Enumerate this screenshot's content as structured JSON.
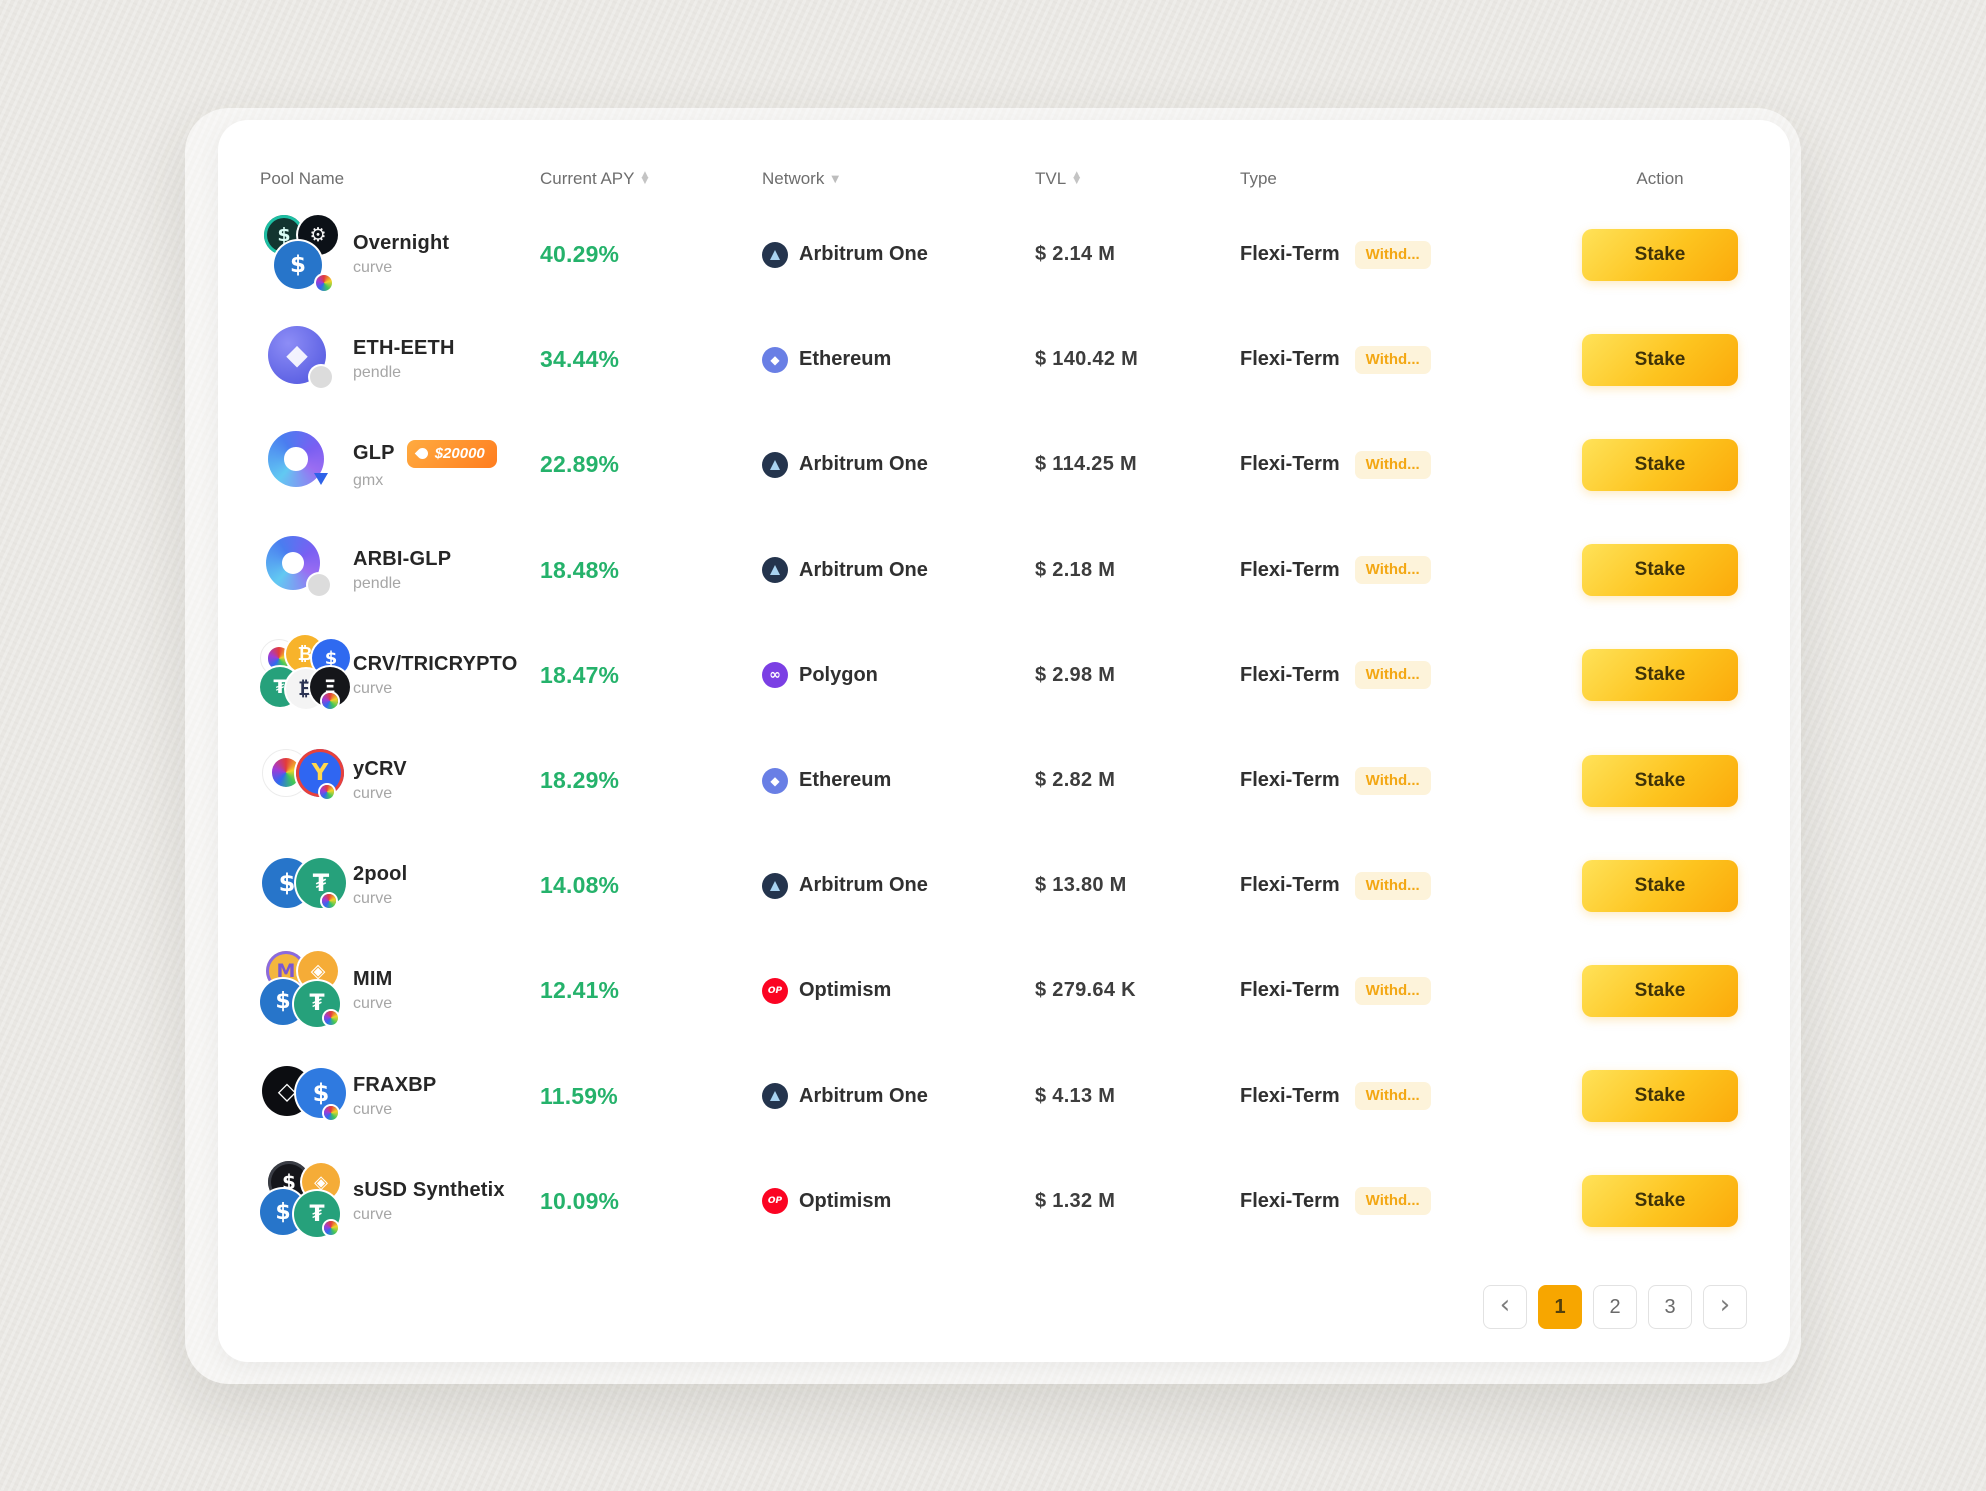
{
  "icons": {
    "sort_up": "▲",
    "sort_down": "▼",
    "caret_down": "▼",
    "chevron_left": "‹",
    "chevron_right": "›",
    "optimism_label": "OP",
    "ethereum_glyph": "◆",
    "polygon_glyph": "∞"
  },
  "colors": {
    "apy_green": "#25b26b",
    "stake_gradient": [
      "#ffe259",
      "#fba90a"
    ],
    "hot_badge_gradient": [
      "#ffab40",
      "#ff7d1f"
    ],
    "type_badge_bg": "#fdf3da",
    "type_badge_text": "#f3a713",
    "active_page": "#f7a600",
    "page_background": "#e9e7e3"
  },
  "table": {
    "columns": [
      {
        "label": "Pool Name",
        "icon": null
      },
      {
        "label": "Current APY",
        "icon": "sort"
      },
      {
        "label": "Network",
        "icon": "caret"
      },
      {
        "label": "TVL",
        "icon": "sort"
      },
      {
        "label": "Type",
        "icon": null
      },
      {
        "label": "Action",
        "icon": null
      }
    ],
    "rows": [
      {
        "name": "Overnight",
        "protocol": "curve",
        "hot_badge": null,
        "apy": "40.29%",
        "network": {
          "label": "Arbitrum One",
          "type": "arbitrum"
        },
        "tvl": "$ 2.14 M",
        "type": "Flexi-Term",
        "type_badge": "Withd...",
        "action": "Stake",
        "coins": [
          {
            "g": "$",
            "bg": "#123530",
            "fg": "#d9fef6",
            "ring": "#1dbfa3",
            "x": 4,
            "y": 0,
            "s": 40
          },
          {
            "g": "⚙",
            "bg": "#0c1117",
            "fg": "#f5f5f5",
            "x": 38,
            "y": 0,
            "s": 40
          },
          {
            "g": "$",
            "bg": "#2775ca",
            "fg": "#ffffff",
            "x": 14,
            "y": 26,
            "s": 48
          }
        ],
        "chip": {
          "type": "curve",
          "x": 56,
          "y": 60,
          "s": 16
        }
      },
      {
        "name": "ETH-EETH",
        "protocol": "pendle",
        "hot_badge": null,
        "apy": "34.44%",
        "network": {
          "label": "Ethereum",
          "type": "ethereum"
        },
        "tvl": "$ 140.42 M",
        "type": "Flexi-Term",
        "type_badge": "Withd...",
        "action": "Stake",
        "coins": [
          {
            "t": "eth",
            "g": "◆",
            "x": 8,
            "y": 6,
            "s": 58
          }
        ],
        "chip": {
          "type": "gray",
          "x": 50,
          "y": 46,
          "s": 22
        }
      },
      {
        "name": "GLP",
        "protocol": "gmx",
        "hot_badge": {
          "text": "$20000"
        },
        "apy": "22.89%",
        "network": {
          "label": "Arbitrum One",
          "type": "arbitrum"
        },
        "tvl": "$ 114.25 M",
        "type": "Flexi-Term",
        "type_badge": "Withd...",
        "action": "Stake",
        "coins": [
          {
            "t": "gmx",
            "x": 8,
            "y": 6,
            "s": 56
          }
        ],
        "chip": {
          "type": "tri",
          "x": 54,
          "y": 48,
          "s": 14
        }
      },
      {
        "name": "ARBI-GLP",
        "protocol": "pendle",
        "hot_badge": null,
        "apy": "18.48%",
        "network": {
          "label": "Arbitrum One",
          "type": "arbitrum"
        },
        "tvl": "$ 2.18 M",
        "type": "Flexi-Term",
        "type_badge": "Withd...",
        "action": "Stake",
        "coins": [
          {
            "t": "gmx",
            "x": 6,
            "y": 6,
            "s": 54
          }
        ],
        "chip": {
          "type": "gray",
          "x": 48,
          "y": 44,
          "s": 22
        }
      },
      {
        "name": "CRV/TRICRYPTO",
        "protocol": "curve",
        "hot_badge": null,
        "apy": "18.47%",
        "network": {
          "label": "Polygon",
          "type": "polygon"
        },
        "tvl": "$ 2.98 M",
        "type": "Flexi-Term",
        "type_badge": "Withd...",
        "action": "Stake",
        "coins": [
          {
            "t": "curve",
            "x": 0,
            "y": 4,
            "s": 38
          },
          {
            "g": "₿",
            "bg": "#f7b32b",
            "fg": "#ffffff",
            "x": 26,
            "y": 0,
            "s": 38
          },
          {
            "g": "$",
            "bg": "#2f6af0",
            "fg": "#ffffff",
            "x": 52,
            "y": 4,
            "s": 38
          },
          {
            "g": "₮",
            "bg": "#26a17b",
            "fg": "#ffffff",
            "x": 0,
            "y": 32,
            "s": 40
          },
          {
            "g": "₿",
            "bg": "#f4f4f4",
            "fg": "#2a3353",
            "x": 26,
            "y": 34,
            "s": 40
          },
          {
            "g": "Ξ",
            "bg": "#15161a",
            "fg": "#ffffff",
            "x": 50,
            "y": 32,
            "s": 40
          }
        ],
        "chip": {
          "type": "curve",
          "x": 62,
          "y": 58,
          "s": 16
        }
      },
      {
        "name": "yCRV",
        "protocol": "curve",
        "hot_badge": null,
        "apy": "18.29%",
        "network": {
          "label": "Ethereum",
          "type": "ethereum"
        },
        "tvl": "$ 2.82 M",
        "type": "Flexi-Term",
        "type_badge": "Withd...",
        "action": "Stake",
        "coins": [
          {
            "t": "curve",
            "x": 2,
            "y": 8,
            "s": 48
          },
          {
            "g": "Y",
            "bg": "#2f66f2",
            "fg": "#ffd84d",
            "ring": "#e8413c",
            "x": 36,
            "y": 8,
            "s": 48
          }
        ],
        "chip": {
          "type": "curve",
          "x": 60,
          "y": 44,
          "s": 14
        }
      },
      {
        "name": "2pool",
        "protocol": "curve",
        "hot_badge": null,
        "apy": "14.08%",
        "network": {
          "label": "Arbitrum One",
          "type": "arbitrum"
        },
        "tvl": "$ 13.80 M",
        "type": "Flexi-Term",
        "type_badge": "Withd...",
        "action": "Stake",
        "coins": [
          {
            "g": "$",
            "bg": "#2775ca",
            "fg": "#ffffff",
            "x": 2,
            "y": 12,
            "s": 50
          },
          {
            "g": "₮",
            "bg": "#26a17b",
            "fg": "#ffffff",
            "x": 36,
            "y": 12,
            "s": 50
          }
        ],
        "chip": {
          "type": "curve",
          "x": 62,
          "y": 48,
          "s": 14
        }
      },
      {
        "name": "MIM",
        "protocol": "curve",
        "hot_badge": null,
        "apy": "12.41%",
        "network": {
          "label": "Optimism",
          "type": "optimism"
        },
        "tvl": "$ 279.64 K",
        "type": "Flexi-Term",
        "type_badge": "Withd...",
        "action": "Stake",
        "coins": [
          {
            "g": "M",
            "bg": "#f3b63e",
            "fg": "#7a57d1",
            "ring": "#8a6ae0",
            "x": 6,
            "y": 0,
            "s": 40
          },
          {
            "g": "◈",
            "bg": "#f5ac37",
            "fg": "#ffffff",
            "x": 38,
            "y": 0,
            "s": 40
          },
          {
            "g": "$",
            "bg": "#2775ca",
            "fg": "#ffffff",
            "x": 0,
            "y": 28,
            "s": 46
          },
          {
            "g": "₮",
            "bg": "#26a17b",
            "fg": "#ffffff",
            "x": 34,
            "y": 30,
            "s": 46
          }
        ],
        "chip": {
          "type": "curve",
          "x": 64,
          "y": 60,
          "s": 14
        }
      },
      {
        "name": "FRAXBP",
        "protocol": "curve",
        "hot_badge": null,
        "apy": "11.59%",
        "network": {
          "label": "Arbitrum One",
          "type": "arbitrum"
        },
        "tvl": "$ 4.13 M",
        "type": "Flexi-Term",
        "type_badge": "Withd...",
        "action": "Stake",
        "coins": [
          {
            "g": "◇",
            "bg": "#0c0d11",
            "fg": "#ffffff",
            "x": 2,
            "y": 10,
            "s": 50
          },
          {
            "g": "$",
            "bg": "#2f7ae0",
            "fg": "#ffffff",
            "x": 36,
            "y": 12,
            "s": 50
          }
        ],
        "chip": {
          "type": "curve",
          "x": 64,
          "y": 50,
          "s": 14
        }
      },
      {
        "name": "sUSD Synthetix",
        "protocol": "curve",
        "hot_badge": null,
        "apy": "10.09%",
        "network": {
          "label": "Optimism",
          "type": "optimism"
        },
        "tvl": "$ 1.32 M",
        "type": "Flexi-Term",
        "type_badge": "Withd...",
        "action": "Stake",
        "coins": [
          {
            "g": "$",
            "bg": "#15161b",
            "fg": "#ffffff",
            "ring": "#3a3d45",
            "x": 8,
            "y": 0,
            "s": 42
          },
          {
            "g": "◈",
            "bg": "#f5ac37",
            "fg": "#ffffff",
            "x": 42,
            "y": 2,
            "s": 38
          },
          {
            "g": "$",
            "bg": "#2775ca",
            "fg": "#ffffff",
            "x": 0,
            "y": 28,
            "s": 46
          },
          {
            "g": "₮",
            "bg": "#26a17b",
            "fg": "#ffffff",
            "x": 34,
            "y": 30,
            "s": 46
          }
        ],
        "chip": {
          "type": "curve",
          "x": 64,
          "y": 60,
          "s": 14
        }
      }
    ]
  },
  "pagination": {
    "pages": [
      "1",
      "2",
      "3"
    ],
    "active": "1"
  }
}
